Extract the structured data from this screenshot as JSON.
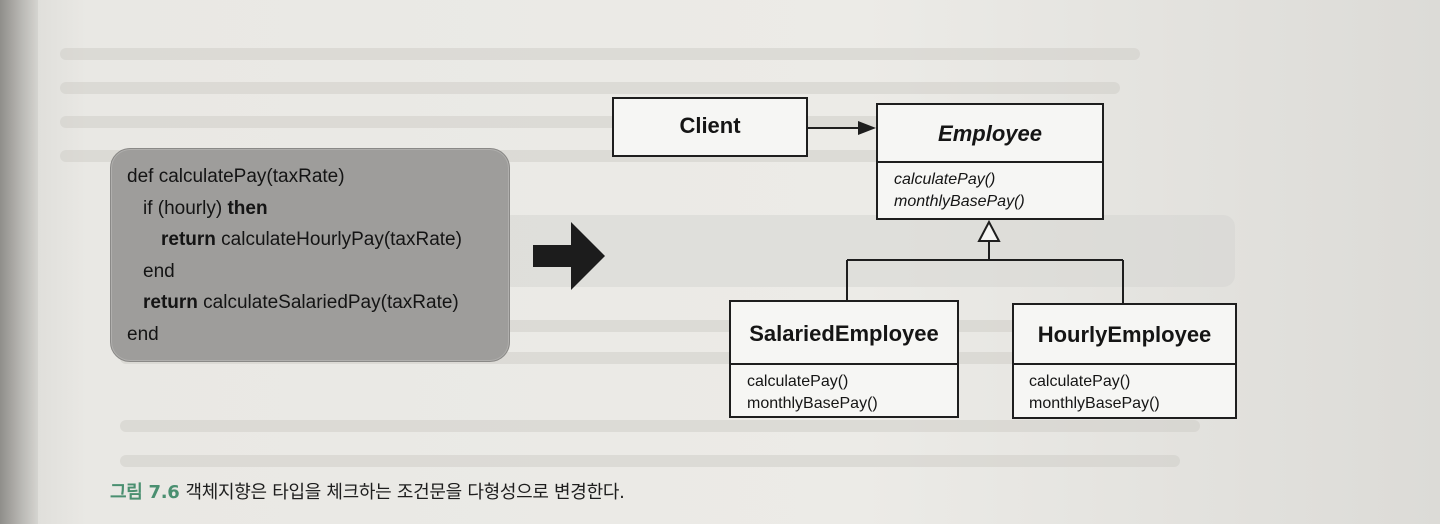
{
  "code": {
    "lines": [
      {
        "pre": "def calculatePay(taxRate)",
        "kw": "",
        "post": ""
      },
      {
        "pre": "if (hourly) ",
        "kw": "then",
        "post": ""
      },
      {
        "pre": "",
        "kw": "return",
        "post": " calculateHourlyPay(taxRate)"
      },
      {
        "pre": "end",
        "kw": "",
        "post": ""
      },
      {
        "pre": "",
        "kw": "return",
        "post": " calculateSalariedPay(taxRate)"
      },
      {
        "pre": "end",
        "kw": "",
        "post": ""
      }
    ]
  },
  "diagram": {
    "client": {
      "title": "Client"
    },
    "employee": {
      "title": "Employee",
      "ops": [
        "calculatePay()",
        "monthlyBasePay()"
      ]
    },
    "salaried": {
      "title": "SalariedEmployee",
      "ops": [
        "calculatePay()",
        "monthlyBasePay()"
      ]
    },
    "hourly": {
      "title": "HourlyEmployee",
      "ops": [
        "calculatePay()",
        "monthlyBasePay()"
      ]
    }
  },
  "caption": {
    "figure": "그림 7.6",
    "text": "객체지향은 타입을 체크하는 조건문을 다형성으로 변경한다."
  }
}
